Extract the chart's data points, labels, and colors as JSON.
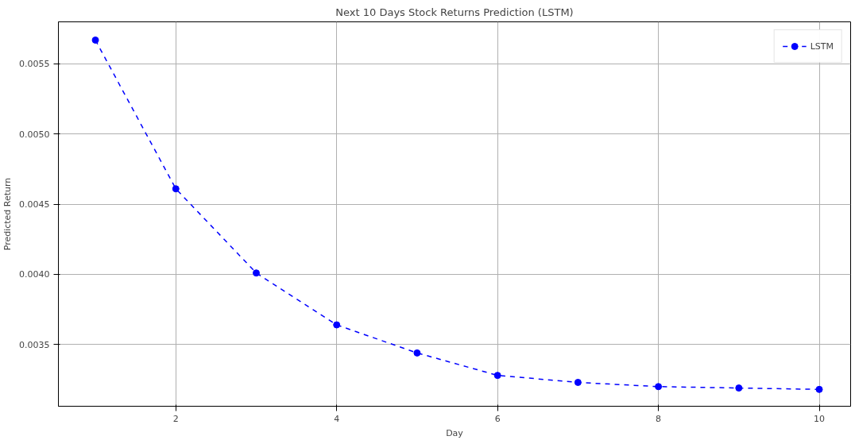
{
  "chart_data": {
    "type": "line",
    "title": "Next 10 Days Stock Returns Prediction (LSTM)",
    "xlabel": "Day",
    "ylabel": "Predicted Return",
    "x": [
      1,
      2,
      3,
      4,
      5,
      6,
      7,
      8,
      9,
      10
    ],
    "series": [
      {
        "name": "LSTM",
        "color": "#0000ff",
        "values": [
          0.00567,
          0.00461,
          0.00401,
          0.00364,
          0.00344,
          0.00328,
          0.00323,
          0.0032,
          0.00319,
          0.00318
        ]
      }
    ],
    "xlim": [
      0.54,
      10.39
    ],
    "ylim": [
      0.00306,
      0.0058
    ],
    "xticks": [
      2,
      4,
      6,
      8,
      10
    ],
    "yticks": [
      {
        "value": 0.0035,
        "label": "0.0035"
      },
      {
        "value": 0.004,
        "label": "0.0040"
      },
      {
        "value": 0.0045,
        "label": "0.0045"
      },
      {
        "value": 0.005,
        "label": "0.0050"
      },
      {
        "value": 0.0055,
        "label": "0.0055"
      }
    ],
    "grid": true,
    "legend": "top right",
    "marker": "circle",
    "line_style": "dashed"
  }
}
